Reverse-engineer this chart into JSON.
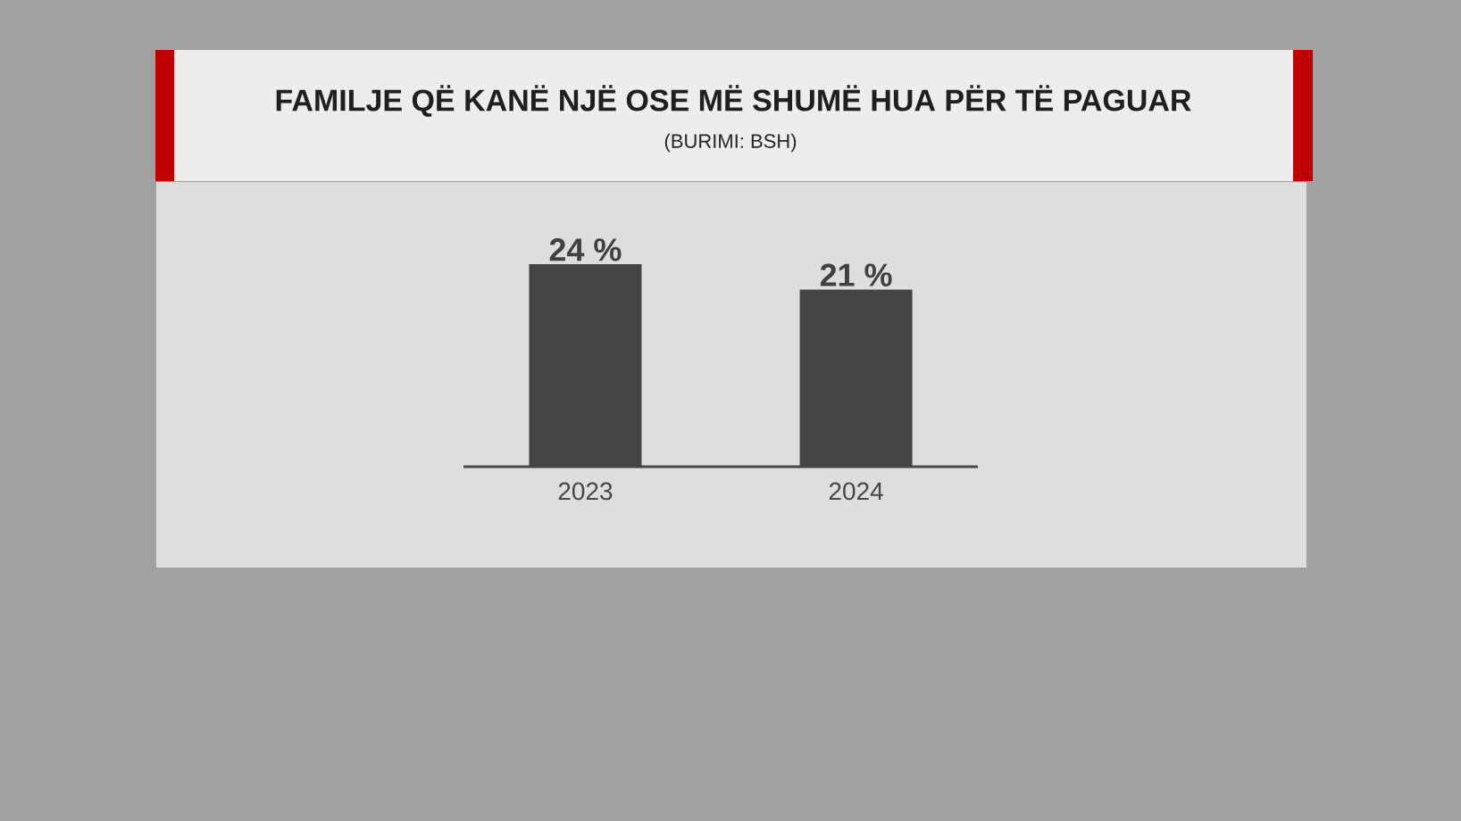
{
  "chart_data": {
    "type": "bar",
    "title": "FAMILJE QË KANË NJË OSE MË SHUMË HUA PËR TË PAGUAR",
    "subtitle": "(BURIMI: BSH)",
    "categories": [
      "2023",
      "2024"
    ],
    "values": [
      24,
      21
    ],
    "color": "#444444",
    "value_labels": [
      "24 %",
      "21 %"
    ]
  }
}
